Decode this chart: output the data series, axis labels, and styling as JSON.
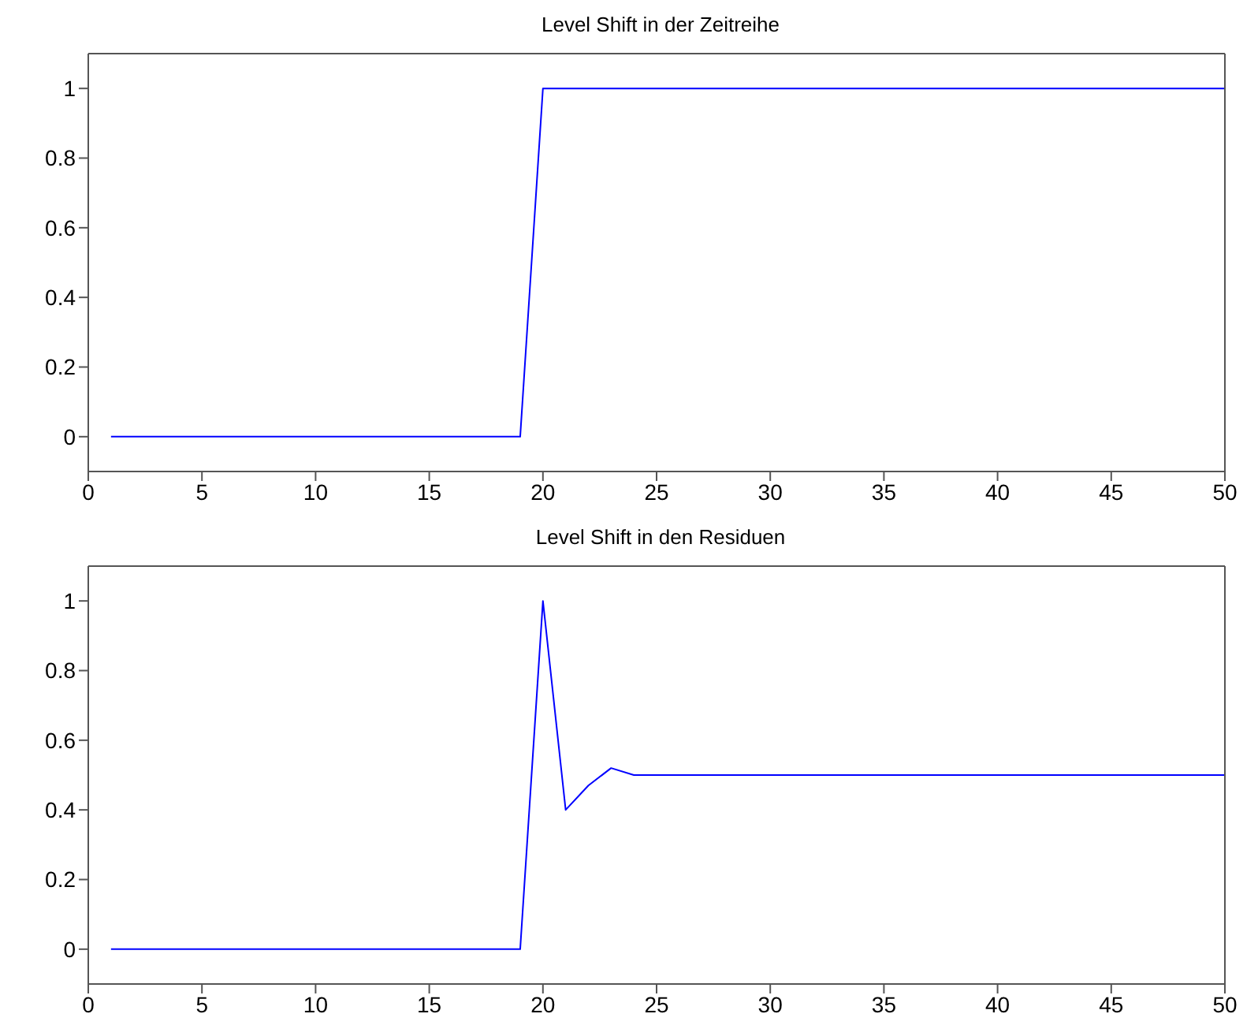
{
  "chart_data": [
    {
      "type": "line",
      "title": "Level Shift in der Zeitreihe",
      "x": [
        1,
        2,
        3,
        4,
        5,
        6,
        7,
        8,
        9,
        10,
        11,
        12,
        13,
        14,
        15,
        16,
        17,
        18,
        19,
        20,
        21,
        22,
        23,
        24,
        25,
        26,
        27,
        28,
        29,
        30,
        31,
        32,
        33,
        34,
        35,
        36,
        37,
        38,
        39,
        40,
        41,
        42,
        43,
        44,
        45,
        46,
        47,
        48,
        49,
        50
      ],
      "series": [
        {
          "color": "#0000ff",
          "values": [
            0,
            0,
            0,
            0,
            0,
            0,
            0,
            0,
            0,
            0,
            0,
            0,
            0,
            0,
            0,
            0,
            0,
            0,
            0,
            1,
            1,
            1,
            1,
            1,
            1,
            1,
            1,
            1,
            1,
            1,
            1,
            1,
            1,
            1,
            1,
            1,
            1,
            1,
            1,
            1,
            1,
            1,
            1,
            1,
            1,
            1,
            1,
            1,
            1,
            1
          ]
        }
      ],
      "xlim": [
        0,
        50
      ],
      "xticks": [
        0,
        5,
        10,
        15,
        20,
        25,
        30,
        35,
        40,
        45,
        50
      ],
      "ylim": [
        -0.1,
        1.1
      ],
      "yticks": [
        0,
        0.2,
        0.4,
        0.6,
        0.8,
        1
      ],
      "marker": "none",
      "line_style": "solid"
    },
    {
      "type": "line",
      "title": "Level Shift in den Residuen",
      "x": [
        1,
        2,
        3,
        4,
        5,
        6,
        7,
        8,
        9,
        10,
        11,
        12,
        13,
        14,
        15,
        16,
        17,
        18,
        19,
        20,
        21,
        22,
        23,
        24,
        25,
        26,
        27,
        28,
        29,
        30,
        31,
        32,
        33,
        34,
        35,
        36,
        37,
        38,
        39,
        40,
        41,
        42,
        43,
        44,
        45,
        46,
        47,
        48,
        49,
        50
      ],
      "series": [
        {
          "color": "#0000ff",
          "values": [
            0,
            0,
            0,
            0,
            0,
            0,
            0,
            0,
            0,
            0,
            0,
            0,
            0,
            0,
            0,
            0,
            0,
            0,
            0,
            1,
            0.4,
            0.47,
            0.52,
            0.5,
            0.5,
            0.5,
            0.5,
            0.5,
            0.5,
            0.5,
            0.5,
            0.5,
            0.5,
            0.5,
            0.5,
            0.5,
            0.5,
            0.5,
            0.5,
            0.5,
            0.5,
            0.5,
            0.5,
            0.5,
            0.5,
            0.5,
            0.5,
            0.5,
            0.5,
            0.5
          ]
        }
      ],
      "xlim": [
        0,
        50
      ],
      "xticks": [
        0,
        5,
        10,
        15,
        20,
        25,
        30,
        35,
        40,
        45,
        50
      ],
      "ylim": [
        -0.1,
        1.1
      ],
      "yticks": [
        0,
        0.2,
        0.4,
        0.6,
        0.8,
        1
      ],
      "marker": "none",
      "line_style": "solid"
    }
  ]
}
